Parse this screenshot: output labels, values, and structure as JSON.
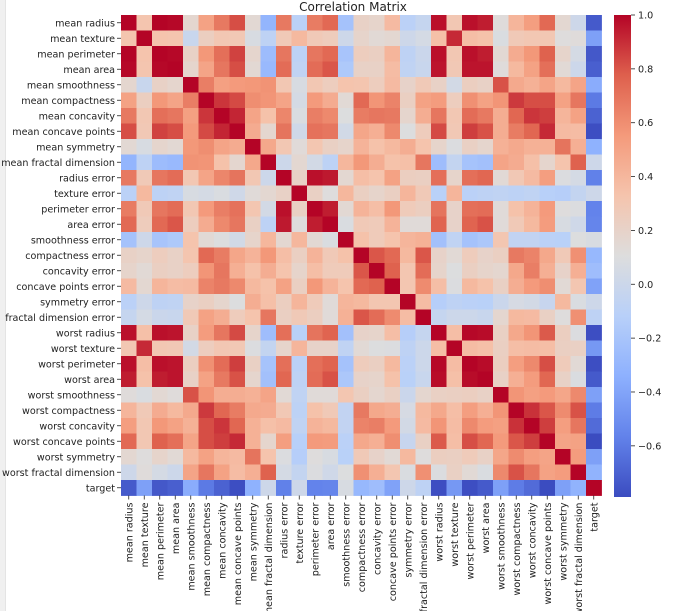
{
  "chart_data": {
    "type": "heatmap",
    "title": "Correlation Matrix",
    "labels": [
      "mean radius",
      "mean texture",
      "mean perimeter",
      "mean area",
      "mean smoothness",
      "mean compactness",
      "mean concavity",
      "mean concave points",
      "mean symmetry",
      "mean fractal dimension",
      "radius error",
      "texture error",
      "perimeter error",
      "area error",
      "smoothness error",
      "compactness error",
      "concavity error",
      "concave points error",
      "symmetry error",
      "fractal dimension error",
      "worst radius",
      "worst texture",
      "worst perimeter",
      "worst area",
      "worst smoothness",
      "worst compactness",
      "worst concavity",
      "worst concave points",
      "worst symmetry",
      "worst fractal dimension",
      "target"
    ],
    "matrix": [
      [
        1.0,
        0.32,
        1.0,
        0.99,
        0.17,
        0.51,
        0.68,
        0.82,
        0.15,
        -0.31,
        0.68,
        -0.1,
        0.67,
        0.74,
        -0.22,
        0.21,
        0.19,
        0.38,
        -0.1,
        -0.04,
        0.97,
        0.3,
        0.97,
        0.94,
        0.12,
        0.41,
        0.53,
        0.74,
        0.16,
        0.01,
        -0.73
      ],
      [
        0.32,
        1.0,
        0.33,
        0.32,
        -0.02,
        0.24,
        0.3,
        0.29,
        0.07,
        -0.08,
        0.28,
        0.39,
        0.28,
        0.26,
        0.01,
        0.19,
        0.14,
        0.16,
        0.01,
        0.05,
        0.35,
        0.91,
        0.36,
        0.34,
        0.08,
        0.28,
        0.3,
        0.3,
        0.11,
        0.12,
        -0.42
      ],
      [
        1.0,
        0.33,
        1.0,
        0.99,
        0.21,
        0.56,
        0.72,
        0.85,
        0.18,
        -0.26,
        0.69,
        -0.09,
        0.69,
        0.74,
        -0.2,
        0.25,
        0.23,
        0.41,
        -0.08,
        -0.01,
        0.97,
        0.3,
        0.97,
        0.94,
        0.15,
        0.46,
        0.56,
        0.77,
        0.19,
        0.05,
        -0.74
      ],
      [
        0.99,
        0.32,
        0.99,
        1.0,
        0.18,
        0.5,
        0.69,
        0.82,
        0.15,
        -0.28,
        0.73,
        -0.07,
        0.73,
        0.8,
        -0.17,
        0.21,
        0.21,
        0.37,
        -0.07,
        -0.02,
        0.96,
        0.29,
        0.96,
        0.96,
        0.12,
        0.39,
        0.51,
        0.72,
        0.14,
        0.0,
        -0.71
      ],
      [
        0.17,
        -0.02,
        0.21,
        0.18,
        1.0,
        0.66,
        0.52,
        0.55,
        0.56,
        0.58,
        0.3,
        0.07,
        0.3,
        0.25,
        0.33,
        0.32,
        0.25,
        0.38,
        0.2,
        0.28,
        0.21,
        0.04,
        0.24,
        0.21,
        0.81,
        0.47,
        0.43,
        0.5,
        0.39,
        0.5,
        -0.36
      ],
      [
        0.51,
        0.24,
        0.56,
        0.5,
        0.66,
        1.0,
        0.88,
        0.83,
        0.6,
        0.57,
        0.5,
        0.05,
        0.55,
        0.46,
        0.14,
        0.74,
        0.57,
        0.64,
        0.23,
        0.51,
        0.54,
        0.25,
        0.59,
        0.51,
        0.57,
        0.87,
        0.82,
        0.82,
        0.51,
        0.69,
        -0.6
      ],
      [
        0.68,
        0.3,
        0.72,
        0.69,
        0.52,
        0.88,
        1.0,
        0.92,
        0.5,
        0.34,
        0.63,
        0.08,
        0.66,
        0.62,
        0.1,
        0.67,
        0.69,
        0.68,
        0.18,
        0.45,
        0.69,
        0.3,
        0.73,
        0.68,
        0.45,
        0.75,
        0.88,
        0.86,
        0.41,
        0.51,
        -0.7
      ],
      [
        0.82,
        0.29,
        0.85,
        0.82,
        0.55,
        0.83,
        0.92,
        1.0,
        0.46,
        0.17,
        0.7,
        0.02,
        0.71,
        0.69,
        0.03,
        0.49,
        0.44,
        0.62,
        0.1,
        0.26,
        0.83,
        0.29,
        0.86,
        0.81,
        0.45,
        0.67,
        0.75,
        0.91,
        0.38,
        0.37,
        -0.78
      ],
      [
        0.15,
        0.07,
        0.18,
        0.15,
        0.56,
        0.6,
        0.5,
        0.46,
        1.0,
        0.48,
        0.3,
        0.13,
        0.31,
        0.22,
        0.19,
        0.42,
        0.34,
        0.39,
        0.45,
        0.33,
        0.19,
        0.09,
        0.22,
        0.18,
        0.43,
        0.47,
        0.43,
        0.43,
        0.7,
        0.44,
        -0.33
      ],
      [
        -0.31,
        -0.08,
        -0.26,
        -0.28,
        0.58,
        0.57,
        0.34,
        0.17,
        0.48,
        1.0,
        0.0,
        0.16,
        0.04,
        -0.09,
        0.4,
        0.56,
        0.45,
        0.34,
        0.35,
        0.69,
        -0.25,
        -0.05,
        -0.21,
        -0.23,
        0.5,
        0.46,
        0.35,
        0.18,
        0.33,
        0.77,
        0.01
      ],
      [
        0.68,
        0.28,
        0.69,
        0.73,
        0.3,
        0.5,
        0.63,
        0.7,
        0.3,
        0.0,
        1.0,
        0.21,
        0.97,
        0.95,
        0.16,
        0.36,
        0.33,
        0.51,
        0.24,
        0.23,
        0.72,
        0.19,
        0.72,
        0.75,
        0.14,
        0.29,
        0.38,
        0.53,
        0.09,
        0.05,
        -0.57
      ],
      [
        -0.1,
        0.39,
        -0.09,
        -0.07,
        0.07,
        0.05,
        0.08,
        0.02,
        0.13,
        0.16,
        0.21,
        1.0,
        0.22,
        0.11,
        0.4,
        0.23,
        0.19,
        0.23,
        0.41,
        0.28,
        -0.11,
        0.41,
        -0.1,
        -0.08,
        -0.07,
        -0.09,
        -0.07,
        -0.12,
        -0.13,
        -0.05,
        0.01
      ],
      [
        0.67,
        0.28,
        0.69,
        0.73,
        0.3,
        0.55,
        0.66,
        0.71,
        0.31,
        0.04,
        0.97,
        0.22,
        1.0,
        0.94,
        0.15,
        0.42,
        0.36,
        0.56,
        0.27,
        0.24,
        0.7,
        0.2,
        0.72,
        0.73,
        0.13,
        0.34,
        0.42,
        0.55,
        0.11,
        0.09,
        -0.56
      ],
      [
        0.74,
        0.26,
        0.74,
        0.8,
        0.25,
        0.46,
        0.62,
        0.69,
        0.22,
        -0.09,
        0.95,
        0.11,
        0.94,
        1.0,
        0.08,
        0.28,
        0.27,
        0.42,
        0.13,
        0.13,
        0.76,
        0.2,
        0.76,
        0.81,
        0.13,
        0.28,
        0.39,
        0.54,
        0.07,
        0.02,
        -0.55
      ],
      [
        -0.22,
        0.01,
        -0.2,
        -0.17,
        0.33,
        0.14,
        0.1,
        0.03,
        0.19,
        0.4,
        0.16,
        0.4,
        0.15,
        0.08,
        1.0,
        0.34,
        0.27,
        0.33,
        0.41,
        0.43,
        -0.23,
        -0.07,
        -0.22,
        -0.18,
        0.31,
        -0.06,
        -0.06,
        -0.1,
        -0.11,
        0.1,
        0.07
      ],
      [
        0.21,
        0.19,
        0.25,
        0.21,
        0.32,
        0.74,
        0.67,
        0.49,
        0.42,
        0.56,
        0.36,
        0.23,
        0.42,
        0.28,
        0.34,
        1.0,
        0.8,
        0.74,
        0.39,
        0.8,
        0.2,
        0.14,
        0.26,
        0.2,
        0.23,
        0.68,
        0.64,
        0.48,
        0.28,
        0.59,
        -0.29
      ],
      [
        0.19,
        0.14,
        0.23,
        0.21,
        0.25,
        0.57,
        0.69,
        0.44,
        0.34,
        0.45,
        0.33,
        0.19,
        0.36,
        0.27,
        0.27,
        0.8,
        1.0,
        0.77,
        0.31,
        0.73,
        0.19,
        0.1,
        0.23,
        0.19,
        0.17,
        0.48,
        0.66,
        0.44,
        0.2,
        0.44,
        -0.25
      ],
      [
        0.38,
        0.16,
        0.41,
        0.37,
        0.38,
        0.64,
        0.68,
        0.62,
        0.39,
        0.34,
        0.51,
        0.23,
        0.56,
        0.42,
        0.33,
        0.74,
        0.77,
        1.0,
        0.31,
        0.61,
        0.36,
        0.09,
        0.39,
        0.34,
        0.22,
        0.45,
        0.55,
        0.6,
        0.14,
        0.31,
        -0.41
      ],
      [
        -0.1,
        0.01,
        -0.08,
        -0.07,
        0.2,
        0.23,
        0.18,
        0.1,
        0.45,
        0.35,
        0.24,
        0.41,
        0.27,
        0.13,
        0.41,
        0.39,
        0.31,
        0.31,
        1.0,
        0.37,
        -0.13,
        -0.08,
        -0.1,
        -0.11,
        -0.01,
        0.06,
        0.04,
        -0.03,
        0.39,
        0.08,
        0.01
      ],
      [
        -0.04,
        0.05,
        -0.01,
        -0.02,
        0.28,
        0.51,
        0.45,
        0.26,
        0.33,
        0.69,
        0.23,
        0.28,
        0.24,
        0.13,
        0.43,
        0.8,
        0.73,
        0.61,
        0.37,
        1.0,
        -0.04,
        -0.0,
        -0.0,
        -0.02,
        0.17,
        0.39,
        0.38,
        0.22,
        0.11,
        0.59,
        -0.08
      ],
      [
        0.97,
        0.35,
        0.97,
        0.96,
        0.21,
        0.54,
        0.69,
        0.83,
        0.19,
        -0.25,
        0.72,
        -0.11,
        0.7,
        0.76,
        -0.23,
        0.2,
        0.19,
        0.36,
        -0.13,
        -0.04,
        1.0,
        0.36,
        0.99,
        0.98,
        0.22,
        0.48,
        0.57,
        0.79,
        0.24,
        0.09,
        -0.78
      ],
      [
        0.3,
        0.91,
        0.3,
        0.29,
        0.04,
        0.25,
        0.3,
        0.29,
        0.09,
        -0.05,
        0.19,
        0.41,
        0.2,
        0.2,
        -0.07,
        0.14,
        0.1,
        0.09,
        -0.08,
        -0.0,
        0.36,
        1.0,
        0.37,
        0.35,
        0.23,
        0.36,
        0.37,
        0.36,
        0.23,
        0.22,
        -0.46
      ],
      [
        0.97,
        0.36,
        0.97,
        0.96,
        0.24,
        0.59,
        0.73,
        0.86,
        0.22,
        -0.21,
        0.72,
        -0.1,
        0.72,
        0.76,
        -0.22,
        0.26,
        0.23,
        0.39,
        -0.1,
        -0.0,
        0.99,
        0.37,
        1.0,
        0.98,
        0.24,
        0.53,
        0.62,
        0.82,
        0.27,
        0.14,
        -0.78
      ],
      [
        0.94,
        0.34,
        0.94,
        0.96,
        0.21,
        0.51,
        0.68,
        0.81,
        0.18,
        -0.23,
        0.75,
        -0.08,
        0.73,
        0.81,
        -0.18,
        0.2,
        0.19,
        0.34,
        -0.11,
        -0.02,
        0.98,
        0.35,
        0.98,
        1.0,
        0.21,
        0.44,
        0.54,
        0.75,
        0.21,
        0.08,
        -0.73
      ],
      [
        0.12,
        0.08,
        0.15,
        0.12,
        0.81,
        0.57,
        0.45,
        0.45,
        0.43,
        0.5,
        0.14,
        -0.07,
        0.13,
        0.13,
        0.31,
        0.23,
        0.17,
        0.22,
        -0.01,
        0.17,
        0.22,
        0.23,
        0.24,
        0.21,
        1.0,
        0.57,
        0.52,
        0.55,
        0.49,
        0.62,
        -0.42
      ],
      [
        0.41,
        0.28,
        0.46,
        0.39,
        0.47,
        0.87,
        0.75,
        0.67,
        0.47,
        0.46,
        0.29,
        -0.09,
        0.34,
        0.28,
        -0.06,
        0.68,
        0.48,
        0.45,
        0.06,
        0.39,
        0.48,
        0.36,
        0.53,
        0.44,
        0.57,
        1.0,
        0.89,
        0.8,
        0.61,
        0.81,
        -0.59
      ],
      [
        0.53,
        0.3,
        0.56,
        0.51,
        0.43,
        0.82,
        0.88,
        0.75,
        0.43,
        0.35,
        0.38,
        -0.07,
        0.42,
        0.39,
        -0.06,
        0.64,
        0.66,
        0.55,
        0.04,
        0.38,
        0.57,
        0.37,
        0.62,
        0.54,
        0.52,
        0.89,
        1.0,
        0.86,
        0.53,
        0.69,
        -0.66
      ],
      [
        0.74,
        0.3,
        0.77,
        0.72,
        0.5,
        0.82,
        0.86,
        0.91,
        0.43,
        0.18,
        0.53,
        -0.12,
        0.55,
        0.54,
        -0.1,
        0.48,
        0.44,
        0.6,
        -0.03,
        0.22,
        0.79,
        0.36,
        0.82,
        0.75,
        0.55,
        0.8,
        0.86,
        1.0,
        0.5,
        0.51,
        -0.79
      ],
      [
        0.16,
        0.11,
        0.19,
        0.14,
        0.39,
        0.51,
        0.41,
        0.38,
        0.7,
        0.33,
        0.09,
        -0.13,
        0.11,
        0.07,
        -0.11,
        0.28,
        0.2,
        0.14,
        0.39,
        0.11,
        0.24,
        0.23,
        0.27,
        0.21,
        0.49,
        0.61,
        0.53,
        0.5,
        1.0,
        0.54,
        -0.42
      ],
      [
        0.01,
        0.12,
        0.05,
        0.0,
        0.5,
        0.69,
        0.51,
        0.37,
        0.44,
        0.77,
        0.05,
        -0.05,
        0.09,
        0.02,
        0.1,
        0.59,
        0.44,
        0.31,
        0.08,
        0.59,
        0.09,
        0.22,
        0.14,
        0.08,
        0.62,
        0.81,
        0.69,
        0.51,
        0.54,
        1.0,
        -0.32
      ],
      [
        -0.73,
        -0.42,
        -0.74,
        -0.71,
        -0.36,
        -0.6,
        -0.7,
        -0.78,
        -0.33,
        0.01,
        -0.57,
        0.01,
        -0.56,
        -0.55,
        0.07,
        -0.29,
        -0.25,
        -0.41,
        0.01,
        -0.08,
        -0.78,
        -0.46,
        -0.78,
        -0.73,
        -0.42,
        -0.59,
        -0.66,
        -0.79,
        -0.42,
        -0.32,
        1.0
      ]
    ],
    "colorbar": {
      "colormap": "coolwarm",
      "range": [
        -0.79,
        1.0
      ],
      "ticks": [
        1.0,
        0.8,
        0.6,
        0.4,
        0.2,
        0.0,
        -0.2,
        -0.4,
        -0.6
      ],
      "tick_labels": [
        "1.0",
        "0.8",
        "0.6",
        "0.4",
        "0.2",
        "0.0",
        "−0.2",
        "−0.4",
        "−0.6"
      ]
    },
    "colors": {
      "low": "#3b4cc0",
      "mid": "#dddddd",
      "high": "#b40426"
    }
  }
}
